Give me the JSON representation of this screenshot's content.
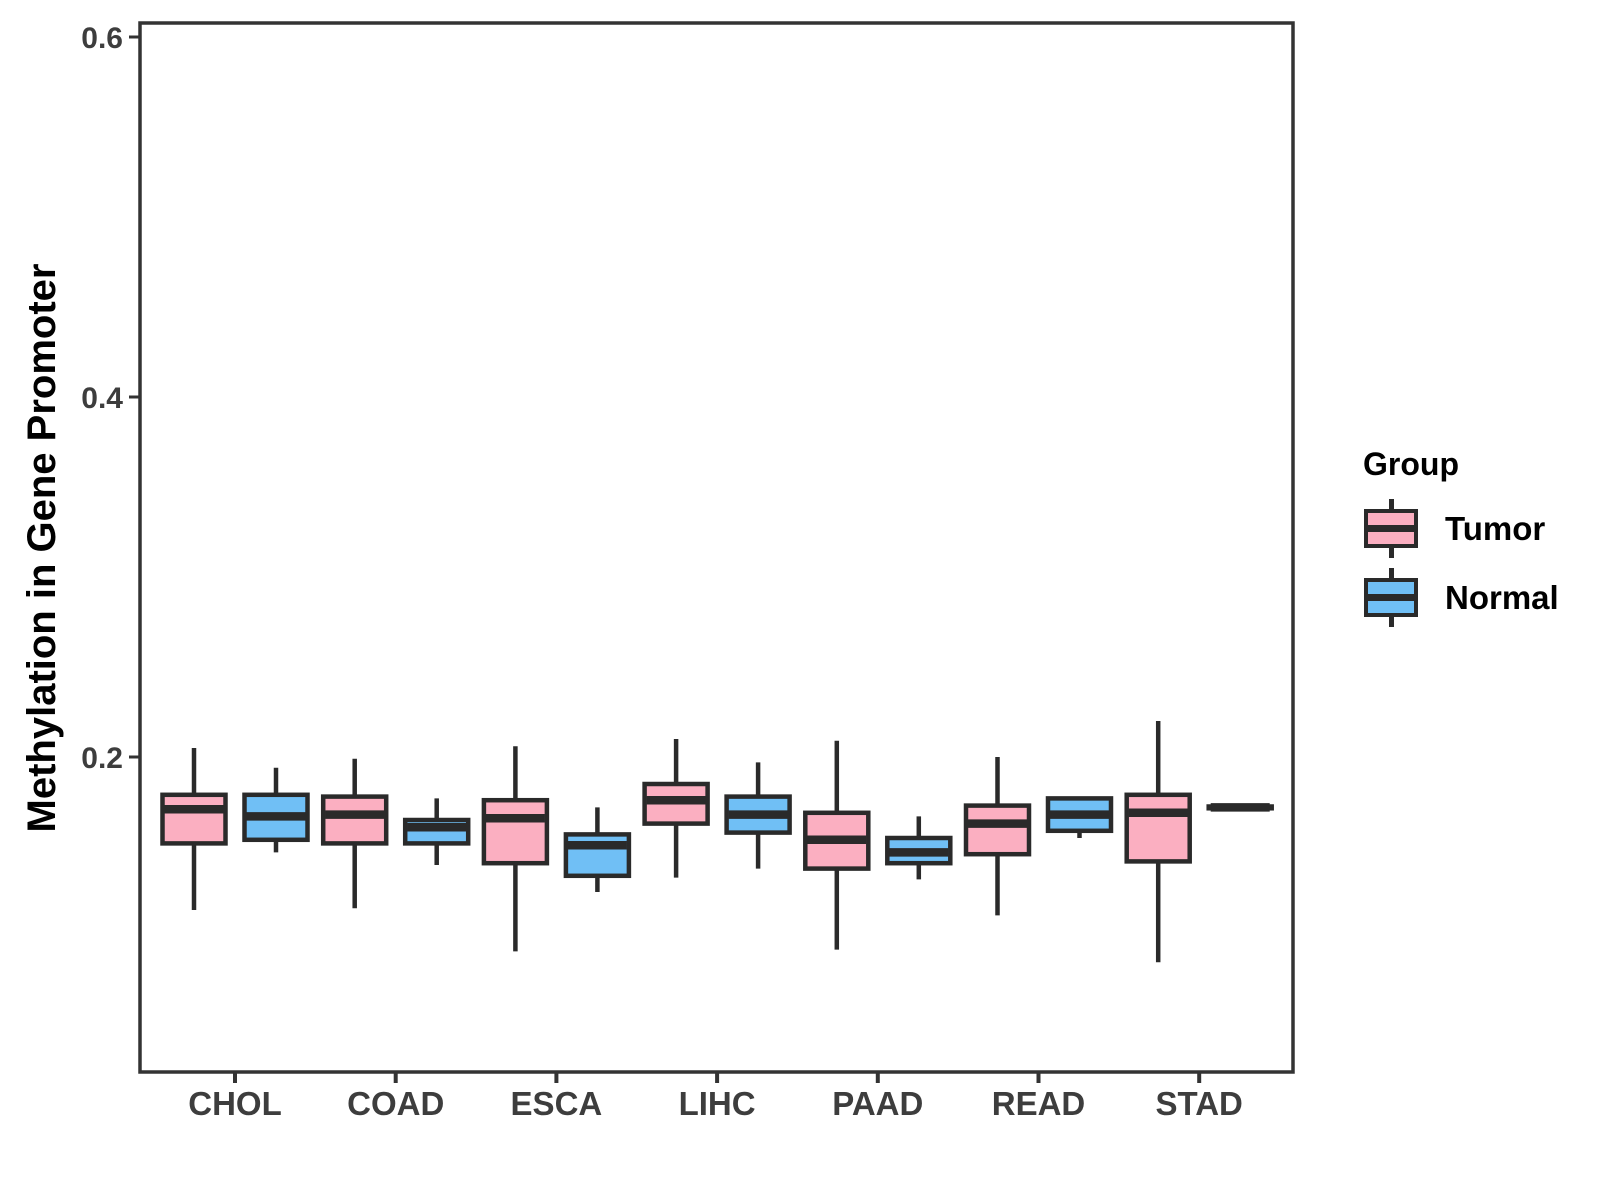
{
  "chart_data": {
    "type": "boxplot",
    "title": "",
    "xlabel": "",
    "ylabel": "Methylation in Gene Promoter",
    "categories": [
      "CHOL",
      "COAD",
      "ESCA",
      "LIHC",
      "PAAD",
      "READ",
      "STAD"
    ],
    "y_axis": {
      "ticks": [
        0.6,
        0.4,
        0.2
      ],
      "tick_labels": [
        "0.6",
        "0.4",
        "0.2"
      ],
      "range": [
        0.025,
        0.608
      ]
    },
    "grid": false,
    "legend": {
      "title": "Group",
      "position": "right",
      "entries": [
        {
          "label": "Tumor",
          "color": "#FBAFC1"
        },
        {
          "label": "Normal",
          "color": "#70BFF5"
        }
      ]
    },
    "series": [
      {
        "name": "Tumor",
        "color": "#FBAFC1",
        "boxes": [
          {
            "category": "CHOL",
            "whisker_low": 0.115,
            "q1": 0.152,
            "median": 0.171,
            "q3": 0.179,
            "whisker_high": 0.205
          },
          {
            "category": "COAD",
            "whisker_low": 0.116,
            "q1": 0.152,
            "median": 0.168,
            "q3": 0.178,
            "whisker_high": 0.199
          },
          {
            "category": "ESCA",
            "whisker_low": 0.092,
            "q1": 0.141,
            "median": 0.166,
            "q3": 0.176,
            "whisker_high": 0.206
          },
          {
            "category": "LIHC",
            "whisker_low": 0.133,
            "q1": 0.163,
            "median": 0.176,
            "q3": 0.185,
            "whisker_high": 0.21
          },
          {
            "category": "PAAD",
            "whisker_low": 0.093,
            "q1": 0.138,
            "median": 0.154,
            "q3": 0.169,
            "whisker_high": 0.209
          },
          {
            "category": "READ",
            "whisker_low": 0.112,
            "q1": 0.146,
            "median": 0.163,
            "q3": 0.173,
            "whisker_high": 0.2
          },
          {
            "category": "STAD",
            "whisker_low": 0.086,
            "q1": 0.142,
            "median": 0.169,
            "q3": 0.179,
            "whisker_high": 0.22
          }
        ]
      },
      {
        "name": "Normal",
        "color": "#70BFF5",
        "boxes": [
          {
            "category": "CHOL",
            "whisker_low": 0.147,
            "q1": 0.154,
            "median": 0.167,
            "q3": 0.179,
            "whisker_high": 0.194
          },
          {
            "category": "COAD",
            "whisker_low": 0.14,
            "q1": 0.152,
            "median": 0.161,
            "q3": 0.165,
            "whisker_high": 0.177
          },
          {
            "category": "ESCA",
            "whisker_low": 0.125,
            "q1": 0.134,
            "median": 0.151,
            "q3": 0.157,
            "whisker_high": 0.172
          },
          {
            "category": "LIHC",
            "whisker_low": 0.138,
            "q1": 0.158,
            "median": 0.168,
            "q3": 0.178,
            "whisker_high": 0.197
          },
          {
            "category": "PAAD",
            "whisker_low": 0.132,
            "q1": 0.141,
            "median": 0.147,
            "q3": 0.155,
            "whisker_high": 0.167
          },
          {
            "category": "READ",
            "whisker_low": 0.155,
            "q1": 0.159,
            "median": 0.168,
            "q3": 0.177,
            "whisker_high": 0.177
          },
          {
            "category": "STAD",
            "whisker_low": 0.1705,
            "q1": 0.1715,
            "median": 0.172,
            "q3": 0.1725,
            "whisker_high": 0.1735
          }
        ]
      }
    ],
    "style": {
      "box_border_color": "#2A2A2A",
      "axis_color": "#333333",
      "tick_label_color": "#3D3D3D",
      "title_color": "#000000",
      "background": "#FFFFFF"
    }
  }
}
